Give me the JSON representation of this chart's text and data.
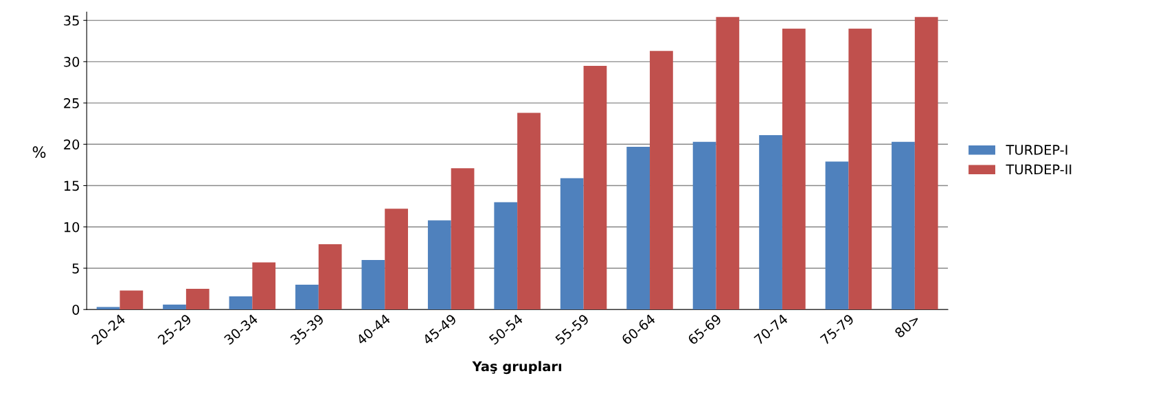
{
  "chart_data": {
    "type": "bar",
    "xlabel": "Yaş grupları",
    "ylabel": "%",
    "categories": [
      "20-24",
      "25-29",
      "30-34",
      "35-39",
      "40-44",
      "45-49",
      "50-54",
      "55-59",
      "60-64",
      "65-69",
      "70-74",
      "75-79",
      "80>"
    ],
    "series": [
      {
        "name": "TURDEP-I",
        "color": "#4f81bd",
        "values": [
          0.3,
          0.6,
          1.6,
          3.0,
          6.0,
          10.8,
          13.0,
          15.9,
          19.7,
          20.3,
          21.1,
          17.9,
          20.3
        ]
      },
      {
        "name": "TURDEP-II",
        "color": "#c0504d",
        "values": [
          2.3,
          2.5,
          5.7,
          7.9,
          12.2,
          17.1,
          23.8,
          29.5,
          31.3,
          35.4,
          34.0,
          34.0,
          35.4
        ]
      }
    ],
    "ylim": [
      0,
      36
    ],
    "yticks": [
      0,
      5,
      10,
      15,
      20,
      25,
      30,
      35
    ],
    "grid": "y",
    "legend": "right"
  }
}
